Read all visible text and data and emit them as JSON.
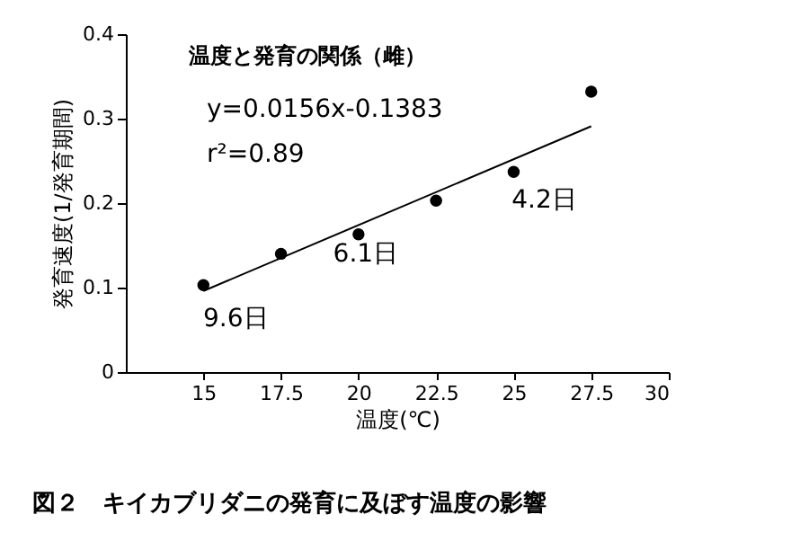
{
  "chart_data": {
    "type": "scatter",
    "xlabel": "温度(℃)",
    "ylabel": "発育速度(1/発育期間)",
    "x": [
      15,
      17.5,
      20,
      22.5,
      25,
      27.5
    ],
    "series": [
      {
        "color": "#000000",
        "marker": "circle",
        "values": [
          0.103,
          0.14,
          0.163,
          0.203,
          0.237,
          0.332
        ]
      },
      {
        "type": "line",
        "color": "#000000",
        "x": [
          15,
          27.5
        ],
        "values": [
          0.096,
          0.291
        ]
      }
    ],
    "xlim": [
      12.5,
      30
    ],
    "xticks": [
      15,
      17.5,
      20,
      22.5,
      25,
      27.5,
      30
    ],
    "ylim": [
      0,
      0.4
    ],
    "yticks": [
      0,
      0.1,
      0.2,
      0.3,
      0.4
    ],
    "grid": false,
    "line_style": "solid",
    "annotations": [
      "温度と発育の関係（雌）",
      "y=0.0156x-0.1383",
      "r²=0.89",
      {
        "text": "9.6日",
        "x": 15,
        "y": 0.103
      },
      {
        "text": "6.1日",
        "x": 20,
        "y": 0.163
      },
      {
        "text": "4.2日",
        "x": 25,
        "y": 0.237
      },
      "図２　キイカブリダニの発育に及ぼす温度の影響"
    ]
  }
}
